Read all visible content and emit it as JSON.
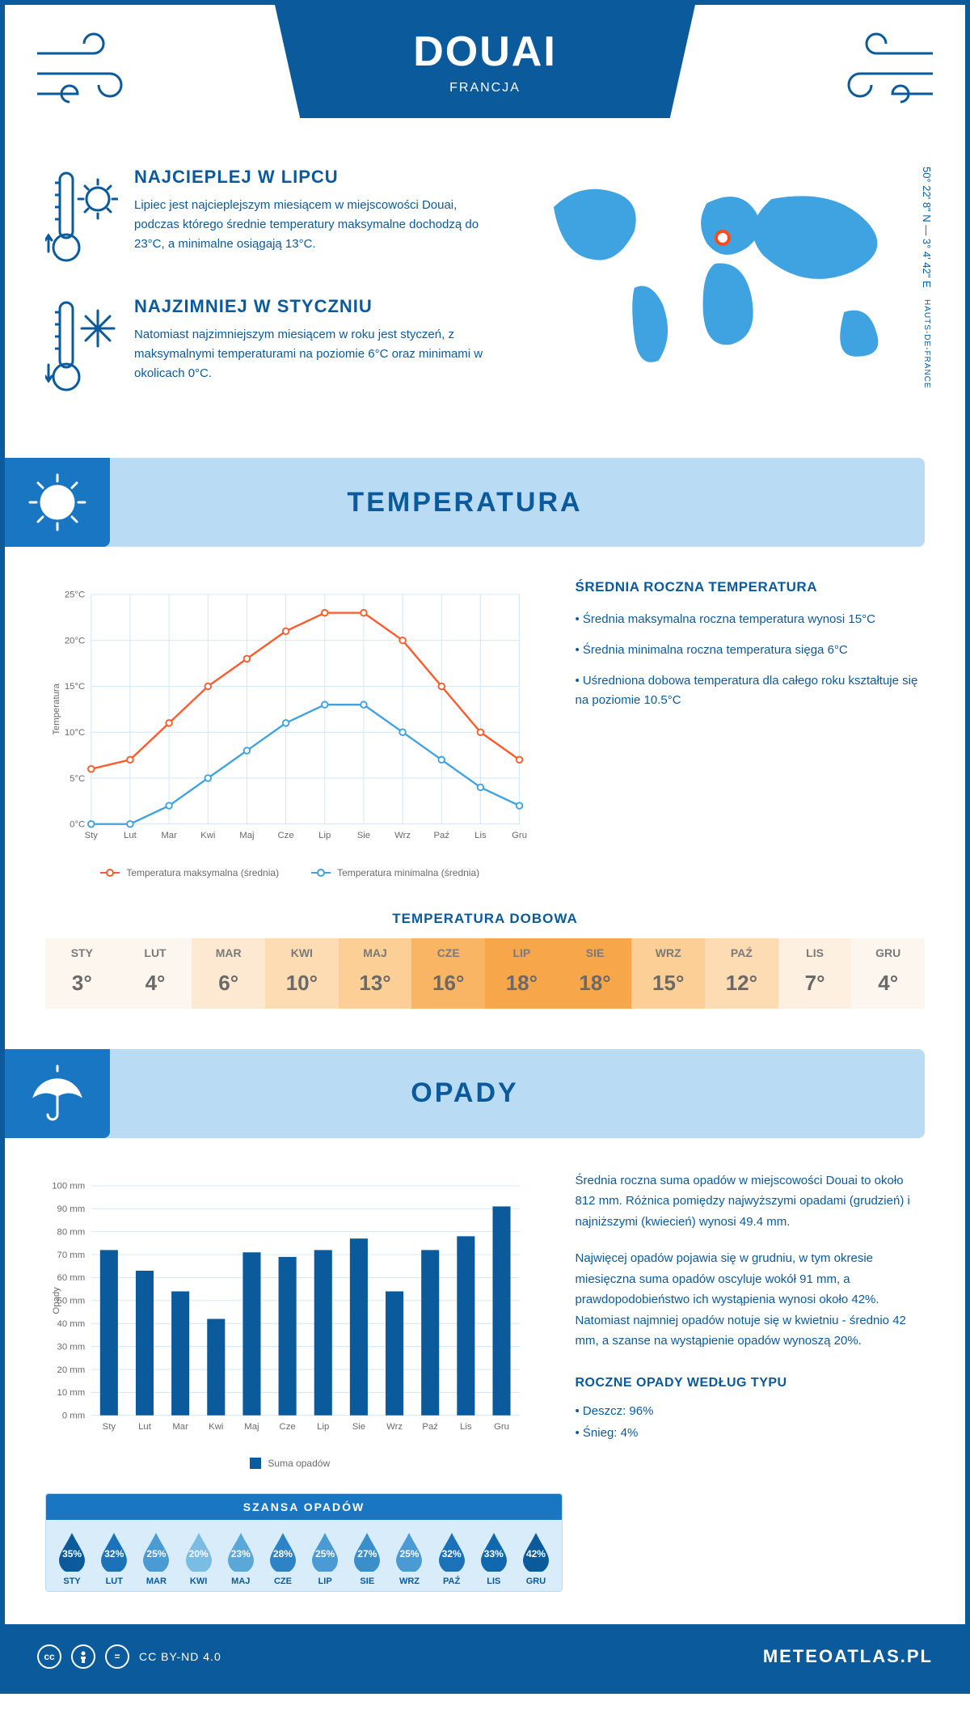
{
  "header": {
    "city": "DOUAI",
    "country": "FRANCJA"
  },
  "coords": {
    "lat": "50° 22' 8\" N — 3° 4' 42\" E",
    "region": "HAUTS-DE-FRANCE"
  },
  "map_marker": {
    "left_pct": 48,
    "top_pct": 30
  },
  "facts": {
    "hot": {
      "title": "NAJCIEPLEJ W LIPCU",
      "text": "Lipiec jest najcieplejszym miesiącem w miejscowości Douai, podczas którego średnie temperatury maksymalne dochodzą do 23°C, a minimalne osiągają 13°C."
    },
    "cold": {
      "title": "NAJZIMNIEJ W STYCZNIU",
      "text": "Natomiast najzimniejszym miesiącem w roku jest styczeń, z maksymalnymi temperaturami na poziomie 6°C oraz minimami w okolicach 0°C."
    }
  },
  "temperature": {
    "section_title": "TEMPERATURA",
    "info_title": "ŚREDNIA ROCZNA TEMPERATURA",
    "bullets": [
      "• Średnia maksymalna roczna temperatura wynosi 15°C",
      "• Średnia minimalna roczna temperatura sięga 6°C",
      "• Uśredniona dobowa temperatura dla całego roku kształtuje się na poziomie 10.5°C"
    ],
    "chart": {
      "months": [
        "Sty",
        "Lut",
        "Mar",
        "Kwi",
        "Maj",
        "Cze",
        "Lip",
        "Sie",
        "Wrz",
        "Paź",
        "Lis",
        "Gru"
      ],
      "max": [
        6,
        7,
        11,
        15,
        18,
        21,
        23,
        23,
        20,
        15,
        10,
        7
      ],
      "min": [
        0,
        0,
        2,
        5,
        8,
        11,
        13,
        13,
        10,
        7,
        4,
        2
      ],
      "max_color": "#ff5a2b",
      "min_color": "#3ea3e0",
      "ylim": [
        0,
        25
      ],
      "ytick_step": 5,
      "ylabel": "Temperatura",
      "grid_color": "#cfe6f7",
      "legend_max": "Temperatura maksymalna (średnia)",
      "legend_min": "Temperatura minimalna (średnia)"
    },
    "daily": {
      "title": "TEMPERATURA DOBOWA",
      "months": [
        "STY",
        "LUT",
        "MAR",
        "KWI",
        "MAJ",
        "CZE",
        "LIP",
        "SIE",
        "WRZ",
        "PAŹ",
        "LIS",
        "GRU"
      ],
      "values": [
        "3°",
        "4°",
        "6°",
        "10°",
        "13°",
        "16°",
        "18°",
        "18°",
        "15°",
        "12°",
        "7°",
        "4°"
      ],
      "colors": [
        "#fdf6ee",
        "#fdf6ee",
        "#fde9d2",
        "#fddcb3",
        "#fbcf95",
        "#f9b564",
        "#f8a64a",
        "#f8a64a",
        "#fbcf95",
        "#fddcb3",
        "#fdf0e0",
        "#fdf6ee"
      ]
    }
  },
  "precip": {
    "section_title": "OPADY",
    "para1": "Średnia roczna suma opadów w miejscowości Douai to około 812 mm. Różnica pomiędzy najwyższymi opadami (grudzień) i najniższymi (kwiecień) wynosi 49.4 mm.",
    "para2": "Najwięcej opadów pojawia się w grudniu, w tym okresie miesięczna suma opadów oscyluje wokół 91 mm, a prawdopodobieństwo ich wystąpienia wynosi około 42%. Natomiast najmniej opadów notuje się w kwietniu - średnio 42 mm, a szanse na wystąpienie opadów wynoszą 20%.",
    "chart": {
      "months": [
        "Sty",
        "Lut",
        "Mar",
        "Kwi",
        "Maj",
        "Cze",
        "Lip",
        "Sie",
        "Wrz",
        "Paź",
        "Lis",
        "Gru"
      ],
      "values": [
        72,
        63,
        54,
        42,
        71,
        69,
        72,
        77,
        54,
        72,
        78,
        91
      ],
      "ylim": [
        0,
        100
      ],
      "ytick_step": 10,
      "ylabel": "Opady",
      "bar_color": "#0a5a9c",
      "legend": "Suma opadów"
    },
    "chance": {
      "title": "SZANSA OPADÓW",
      "months": [
        "STY",
        "LUT",
        "MAR",
        "KWI",
        "MAJ",
        "CZE",
        "LIP",
        "SIE",
        "WRZ",
        "PAŹ",
        "LIS",
        "GRU"
      ],
      "values": [
        "35%",
        "32%",
        "25%",
        "20%",
        "23%",
        "28%",
        "25%",
        "27%",
        "25%",
        "32%",
        "33%",
        "42%"
      ],
      "colors": [
        "#0a5a9c",
        "#1b72b8",
        "#4a9ad4",
        "#7bbce4",
        "#5aa8d8",
        "#2d83c5",
        "#4a9ad4",
        "#3a8fcb",
        "#4a9ad4",
        "#1b72b8",
        "#1268ac",
        "#0a5a9c"
      ]
    },
    "type": {
      "title": "ROCZNE OPADY WEDŁUG TYPU",
      "rain": "• Deszcz: 96%",
      "snow": "• Śnieg: 4%"
    }
  },
  "footer": {
    "license": "CC BY-ND 4.0",
    "site": "METEOATLAS.PL"
  },
  "colors": {
    "primary": "#0a5a9c",
    "light": "#b9dcf4",
    "mid": "#1976c2"
  }
}
